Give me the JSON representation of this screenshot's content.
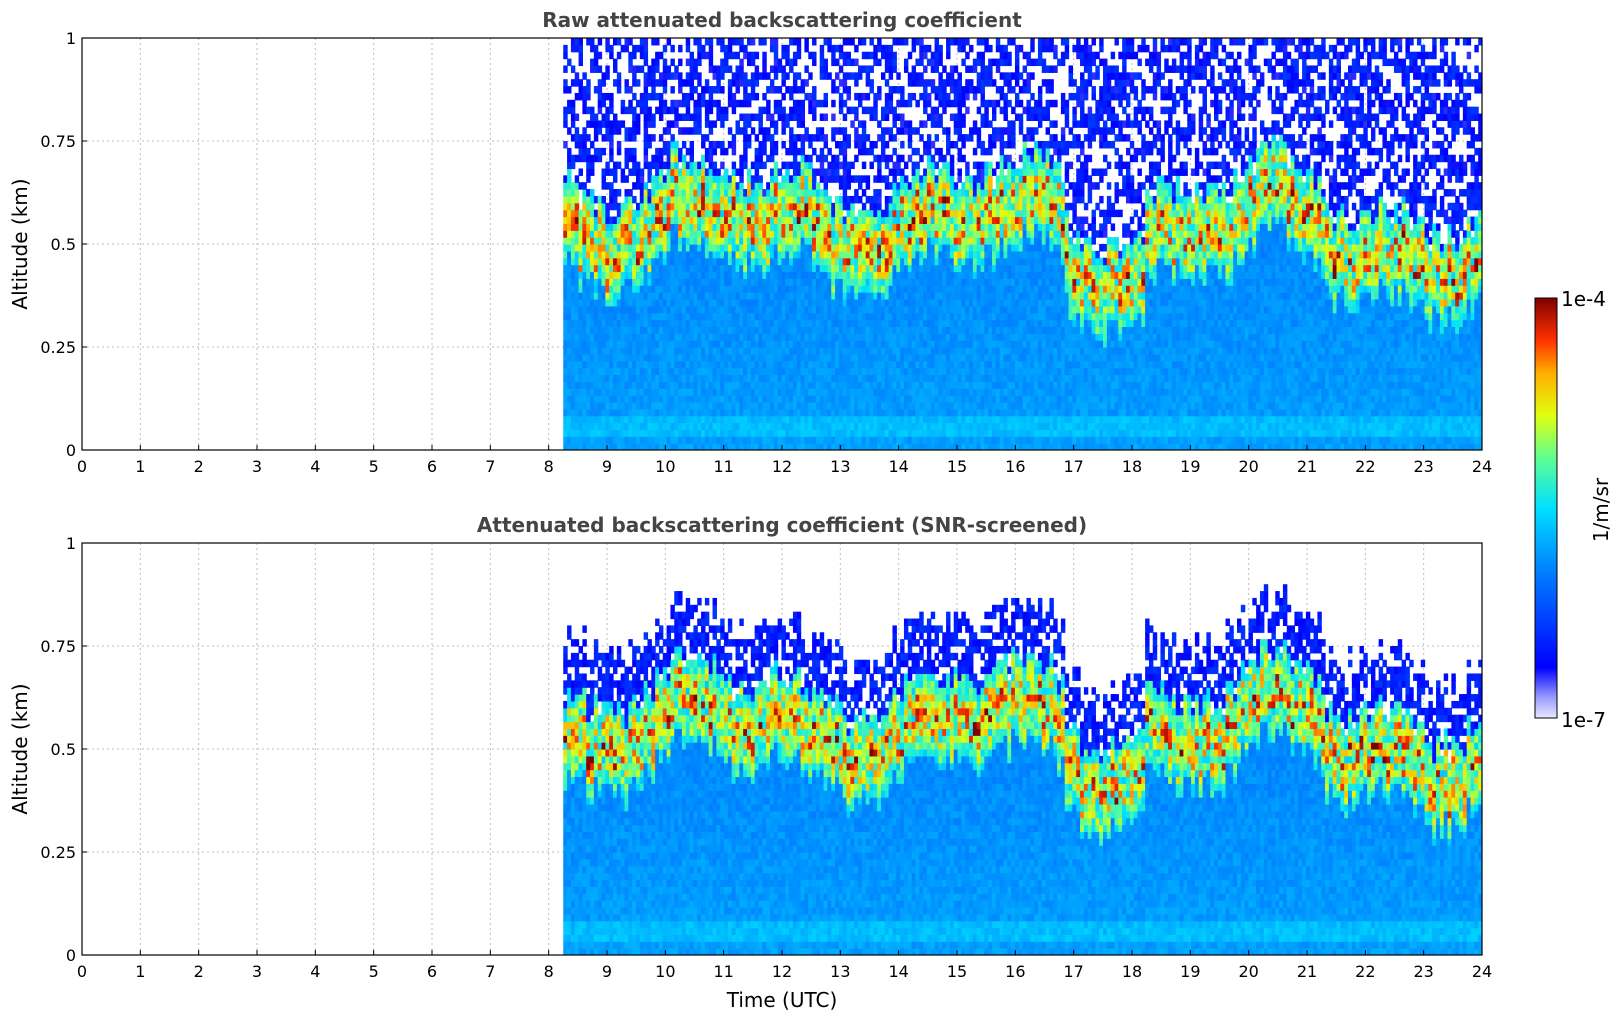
{
  "chart_data": [
    {
      "type": "heatmap",
      "title": "Raw attenuated backscattering coefficient",
      "xlabel": "",
      "ylabel": "Altitude (km)",
      "xlim": [
        0,
        24
      ],
      "ylim": [
        0,
        1
      ],
      "x_ticks": [
        "0",
        "1",
        "2",
        "3",
        "4",
        "5",
        "6",
        "7",
        "8",
        "9",
        "10",
        "11",
        "12",
        "13",
        "14",
        "15",
        "16",
        "17",
        "18",
        "19",
        "20",
        "21",
        "22",
        "23",
        "24"
      ],
      "y_ticks": [
        "0",
        "0.25",
        "0.5",
        "0.75",
        "1"
      ],
      "grid": true,
      "data_start_time": 8.25,
      "screened": false
    },
    {
      "type": "heatmap",
      "title": "Attenuated backscattering coefficient (SNR-screened)",
      "xlabel": "Time (UTC)",
      "ylabel": "Altitude (km)",
      "xlim": [
        0,
        24
      ],
      "ylim": [
        0,
        1
      ],
      "x_ticks": [
        "0",
        "1",
        "2",
        "3",
        "4",
        "5",
        "6",
        "7",
        "8",
        "9",
        "10",
        "11",
        "12",
        "13",
        "14",
        "15",
        "16",
        "17",
        "18",
        "19",
        "20",
        "21",
        "22",
        "23",
        "24"
      ],
      "y_ticks": [
        "0",
        "0.25",
        "0.5",
        "0.75",
        "1"
      ],
      "grid": true,
      "data_start_time": 8.25,
      "screened": true
    }
  ],
  "colorbar": {
    "label": "1/m/sr",
    "max_label": "1e-4",
    "min_label": "1e-7",
    "scale": "log",
    "colormap": "jet",
    "range": [
      1e-07,
      0.0001
    ]
  }
}
